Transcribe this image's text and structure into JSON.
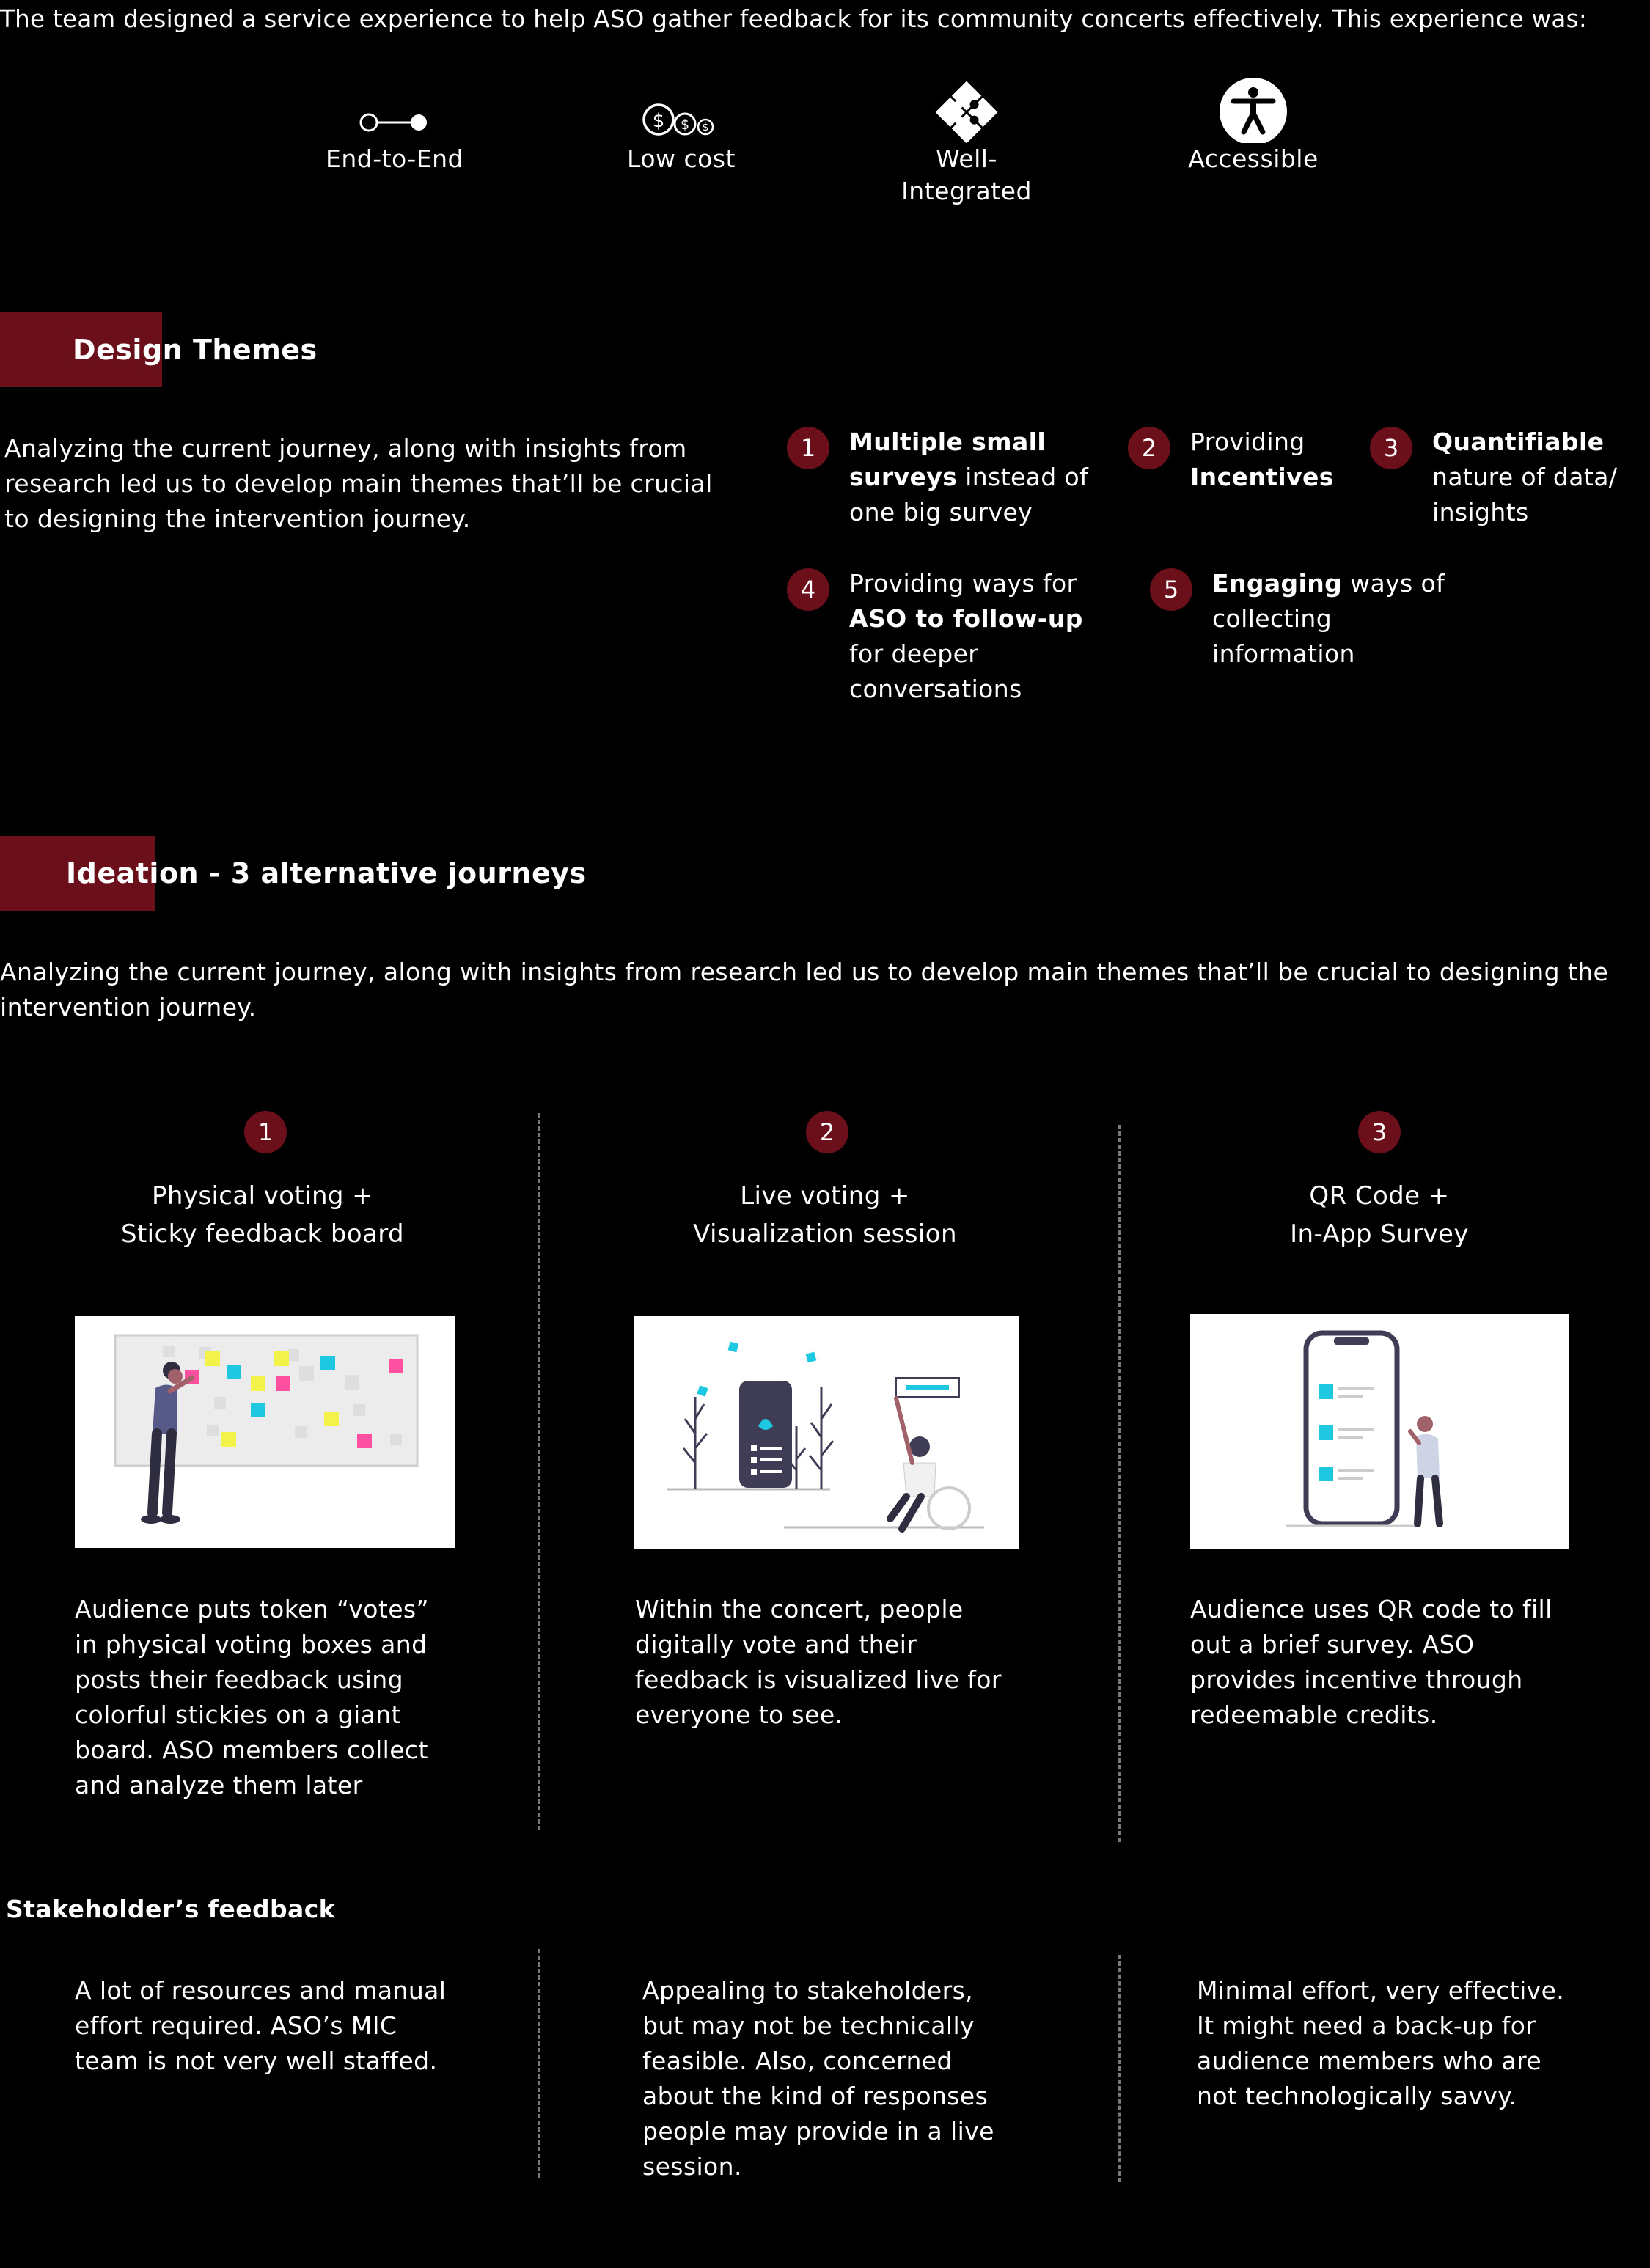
{
  "intro": "The team designed a service experience to help ASO gather feedback for its community concerts effectively. This experience was:",
  "attributes": [
    {
      "label": "End-to-End",
      "icon": "end-to-end-icon"
    },
    {
      "label": "Low cost",
      "icon": "coins-icon"
    },
    {
      "label": "Well-Integrated",
      "icon": "puzzle-icon"
    },
    {
      "label": "Accessible",
      "icon": "accessibility-icon"
    }
  ],
  "design_themes": {
    "title": "Design Themes",
    "description": "Analyzing the current journey, along with insights from research led us to develop main themes that’ll be crucial to designing the intervention journey.",
    "themes": [
      {
        "num": "1",
        "lines": [
          [
            {
              "t": "Multiple small",
              "b": true
            }
          ],
          [
            {
              "t": "surveys",
              "b": true
            },
            {
              "t": " instead of",
              "b": false
            }
          ],
          [
            {
              "t": "one big survey",
              "b": false
            }
          ]
        ]
      },
      {
        "num": "2",
        "lines": [
          [
            {
              "t": "Providing",
              "b": false
            }
          ],
          [
            {
              "t": "Incentives",
              "b": true
            }
          ]
        ]
      },
      {
        "num": "3",
        "lines": [
          [
            {
              "t": "Quantifiable",
              "b": true
            }
          ],
          [
            {
              "t": "nature of data/",
              "b": false
            }
          ],
          [
            {
              "t": "insights",
              "b": false
            }
          ]
        ]
      },
      {
        "num": "4",
        "lines": [
          [
            {
              "t": "Providing ways for",
              "b": false
            }
          ],
          [
            {
              "t": "ASO to follow-up",
              "b": true
            }
          ],
          [
            {
              "t": "for deeper",
              "b": false
            }
          ],
          [
            {
              "t": "conversations",
              "b": false
            }
          ]
        ]
      },
      {
        "num": "5",
        "lines": [
          [
            {
              "t": "Engaging",
              "b": true
            },
            {
              "t": " ways of",
              "b": false
            }
          ],
          [
            {
              "t": "collecting",
              "b": false
            }
          ],
          [
            {
              "t": "information",
              "b": false
            }
          ]
        ]
      }
    ]
  },
  "ideation": {
    "title": "Ideation - 3 alternative journeys",
    "description_lines": [
      "Analyzing the current journey, along with insights from research led us to develop main themes that’ll be crucial to designing the",
      "intervention journey."
    ],
    "alternatives": [
      {
        "num": "1",
        "title_lines": [
          "Physical voting +",
          "Sticky feedback board"
        ],
        "desc_lines": [
          "Audience puts token “votes”",
          "in physical voting boxes and",
          "posts their feedback using",
          "colorful stickies on a giant",
          "board. ASO members collect",
          "and analyze them later"
        ],
        "feedback_lines": [
          "A lot of resources and manual",
          "effort required. ASO’s MIC",
          "team is not very well staffed."
        ]
      },
      {
        "num": "2",
        "title_lines": [
          "Live voting +",
          "Visualization session"
        ],
        "desc_lines": [
          "Within the concert, people",
          "digitally vote and their",
          "feedback is visualized live for",
          "everyone to see."
        ],
        "feedback_lines": [
          "Appealing to stakeholders,",
          "but may not be technically",
          "feasible. Also, concerned",
          "about the kind of responses",
          "people may provide in a live",
          "session."
        ]
      },
      {
        "num": "3",
        "title_lines": [
          "QR Code +",
          "In-App Survey"
        ],
        "desc_lines": [
          "Audience uses QR code to fill",
          "out a brief survey. ASO",
          "provides incentive through",
          "redeemable credits."
        ],
        "feedback_lines": [
          "Minimal effort, very effective.",
          "It might need a back-up for",
          "audience members who are",
          "not technologically savvy."
        ]
      }
    ],
    "feedback_heading": "Stakeholder’s feedback"
  },
  "colors": {
    "accent": "#6b0f1a",
    "background": "#000000",
    "text": "#ffffff",
    "sticky_pink": "#ff4fa0",
    "sticky_cyan": "#1ec8e0",
    "sticky_yellow": "#f2f24a"
  }
}
